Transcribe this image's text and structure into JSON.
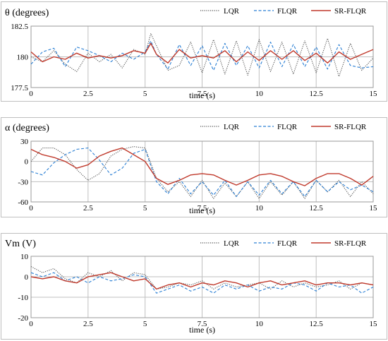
{
  "chart_data": [
    {
      "type": "line",
      "ylabel": "θ (degrees)",
      "xlabel": "time (s)",
      "xlim": [
        0,
        15
      ],
      "ylim": [
        177.5,
        182.5
      ],
      "xticks": [
        "0",
        "2.5",
        "5",
        "7.5",
        "10",
        "12.5",
        "15"
      ],
      "yticks": [
        "177.5",
        "180",
        "182.5"
      ],
      "grid": true,
      "legend": "top-right",
      "series": [
        {
          "name": "LQR",
          "color": "#555555",
          "style": "dotted",
          "x": [
            0,
            0.5,
            1,
            1.5,
            2,
            2.5,
            3,
            3.5,
            4,
            4.5,
            5,
            5.25,
            5.5,
            6,
            6.5,
            7,
            7.5,
            8,
            8.5,
            9,
            9.5,
            10,
            10.5,
            11,
            11.5,
            12,
            12.5,
            13,
            13.5,
            14,
            14.5,
            15
          ],
          "y": [
            180,
            179.6,
            180.5,
            179.4,
            178.8,
            180.3,
            179.6,
            180.2,
            179.1,
            180.6,
            180.2,
            181.9,
            180.9,
            178.9,
            179.3,
            181.2,
            178.7,
            181.4,
            178.6,
            181.3,
            178.5,
            181.4,
            178.8,
            181.2,
            178.6,
            181.3,
            178.7,
            181.5,
            178.4,
            181.1,
            178.9,
            179.9
          ]
        },
        {
          "name": "FLQR",
          "color": "#2a7fd4",
          "style": "dashed",
          "x": [
            0,
            0.5,
            1,
            1.5,
            2,
            2.5,
            3,
            3.5,
            4,
            4.5,
            5,
            5.25,
            5.5,
            6,
            6.5,
            7,
            7.5,
            8,
            8.5,
            9,
            9.5,
            10,
            10.5,
            11,
            11.5,
            12,
            12.5,
            13,
            13.5,
            14,
            14.5,
            15
          ],
          "y": [
            179.4,
            180.4,
            180.7,
            179.2,
            180.8,
            180.5,
            180.1,
            179.6,
            180.3,
            179.8,
            180.4,
            181.3,
            180.2,
            179,
            181,
            179.3,
            180.9,
            178.9,
            181.1,
            179.3,
            180.9,
            179.1,
            181.2,
            179.2,
            181,
            179.2,
            180.8,
            179,
            181,
            179.3,
            179.1,
            179.2
          ]
        },
        {
          "name": "SR-FLQR",
          "color": "#c0392b",
          "style": "solid",
          "x": [
            0,
            0.5,
            1,
            1.5,
            2,
            2.5,
            3,
            3.5,
            4,
            4.5,
            5,
            5.25,
            5.5,
            6,
            6.5,
            7,
            7.5,
            8,
            8.5,
            9,
            9.5,
            10,
            10.5,
            11,
            11.5,
            12,
            12.5,
            13,
            13.5,
            14,
            14.5,
            15
          ],
          "y": [
            180.4,
            179.6,
            180,
            179.8,
            180.3,
            179.9,
            180.1,
            179.9,
            180.1,
            180.5,
            180.3,
            181.1,
            180.2,
            179.5,
            180.6,
            179.9,
            180.1,
            179.9,
            180.5,
            179.6,
            180.4,
            179.7,
            180.5,
            179.8,
            180.5,
            179.7,
            180.3,
            179.5,
            180.4,
            179.8,
            180.2,
            180.6
          ]
        }
      ]
    },
    {
      "type": "line",
      "ylabel": "α (degrees)",
      "xlabel": "time (s)",
      "xlim": [
        0,
        15
      ],
      "ylim": [
        -60,
        30
      ],
      "xticks": [
        "0",
        "2.5",
        "5",
        "7.5",
        "10",
        "12.5",
        "15"
      ],
      "yticks": [
        "30",
        "0",
        "-30",
        "-60"
      ],
      "grid": true,
      "legend": "top-right",
      "series": [
        {
          "name": "LQR",
          "color": "#555555",
          "style": "dotted",
          "x": [
            0,
            0.5,
            1,
            1.5,
            2,
            2.5,
            3,
            3.5,
            4,
            4.5,
            5,
            5.5,
            6,
            6.5,
            7,
            7.5,
            8,
            8.5,
            9,
            9.5,
            10,
            10.5,
            11,
            11.5,
            12,
            12.5,
            13,
            13.5,
            14,
            14.5,
            15
          ],
          "y": [
            0,
            20,
            20,
            10,
            -12,
            -28,
            -18,
            8,
            18,
            22,
            20,
            -25,
            -45,
            -30,
            -52,
            -28,
            -55,
            -32,
            -52,
            -30,
            -55,
            -30,
            -50,
            -30,
            -55,
            -28,
            -45,
            -28,
            -52,
            -30,
            -48
          ]
        },
        {
          "name": "FLQR",
          "color": "#2a7fd4",
          "style": "dashed",
          "x": [
            0,
            0.5,
            1,
            1.5,
            2,
            2.5,
            3,
            3.5,
            4,
            4.5,
            5,
            5.5,
            6,
            6.5,
            7,
            7.5,
            8,
            8.5,
            9,
            9.5,
            10,
            10.5,
            11,
            11.5,
            12,
            12.5,
            13,
            13.5,
            14,
            14.5,
            15
          ],
          "y": [
            -15,
            -20,
            -2,
            10,
            18,
            20,
            2,
            -20,
            -10,
            12,
            18,
            -30,
            -48,
            -25,
            -48,
            -30,
            -50,
            -28,
            -52,
            -30,
            -50,
            -28,
            -48,
            -30,
            -52,
            -28,
            -45,
            -30,
            -42,
            -35,
            -45
          ]
        },
        {
          "name": "SR-FLQR",
          "color": "#c0392b",
          "style": "solid",
          "x": [
            0,
            0.5,
            1,
            1.5,
            2,
            2.5,
            3,
            3.5,
            4,
            4.5,
            5,
            5.5,
            6,
            6.5,
            7,
            7.5,
            8,
            8.5,
            9,
            9.5,
            10,
            10.5,
            11,
            11.5,
            12,
            12.5,
            13,
            13.5,
            14,
            14.5,
            15
          ],
          "y": [
            18,
            10,
            6,
            0,
            -10,
            -5,
            8,
            15,
            20,
            10,
            0,
            -25,
            -34,
            -28,
            -20,
            -18,
            -20,
            -28,
            -35,
            -28,
            -20,
            -18,
            -22,
            -30,
            -36,
            -25,
            -18,
            -18,
            -25,
            -35,
            -22
          ]
        }
      ]
    },
    {
      "type": "line",
      "ylabel": "Vm (V)",
      "xlabel": "time (s)",
      "xlim": [
        0,
        15
      ],
      "ylim": [
        -20,
        10
      ],
      "xticks": [
        "0",
        "2.5",
        "5",
        "7.5",
        "10",
        "12.5",
        "15"
      ],
      "yticks": [
        "10",
        "0",
        "-10",
        "-20"
      ],
      "grid": true,
      "legend": "top-right",
      "series": [
        {
          "name": "LQR",
          "color": "#555555",
          "style": "dotted",
          "x": [
            0,
            0.5,
            1,
            1.5,
            2,
            2.5,
            3,
            3.5,
            4,
            4.5,
            5,
            5.5,
            6,
            6.5,
            7,
            7.5,
            8,
            8.5,
            9,
            9.5,
            10,
            10.5,
            11,
            11.5,
            12,
            12.5,
            13,
            13.5,
            14,
            14.5,
            15
          ],
          "y": [
            5,
            2,
            4,
            -1,
            -3,
            2,
            0,
            3,
            -2,
            2,
            1,
            -6,
            -5,
            -3,
            -4,
            -2,
            -6,
            -3,
            -5,
            -4,
            -3,
            -6,
            -2,
            -5,
            -3,
            -5,
            -4,
            -2,
            -6,
            -3,
            -4
          ]
        },
        {
          "name": "FLQR",
          "color": "#2a7fd4",
          "style": "dashed",
          "x": [
            0,
            0.5,
            1,
            1.5,
            2,
            2.5,
            3,
            3.5,
            4,
            4.5,
            5,
            5.5,
            6,
            6.5,
            7,
            7.5,
            8,
            8.5,
            9,
            9.5,
            10,
            10.5,
            11,
            11.5,
            12,
            12.5,
            13,
            13.5,
            14,
            14.5,
            15
          ],
          "y": [
            2,
            0,
            2,
            -2,
            0,
            -3,
            0,
            -2,
            -1,
            1,
            0,
            -8,
            -6,
            -4,
            -7,
            -5,
            -8,
            -4,
            -6,
            -4,
            -7,
            -5,
            -6,
            -3,
            -4,
            -7,
            -3,
            -5,
            -4,
            -8,
            -5
          ]
        },
        {
          "name": "SR-FLQR",
          "color": "#c0392b",
          "style": "solid",
          "x": [
            0,
            0.5,
            1,
            1.5,
            2,
            2.5,
            3,
            3.5,
            4,
            4.5,
            5,
            5.5,
            6,
            6.5,
            7,
            7.5,
            8,
            8.5,
            9,
            9.5,
            10,
            10.5,
            11,
            11.5,
            12,
            12.5,
            13,
            13.5,
            14,
            14.5,
            15
          ],
          "y": [
            0,
            -1,
            0,
            -2,
            -3,
            0,
            1,
            2,
            0,
            -2,
            -1,
            -6,
            -4,
            -3,
            -5,
            -3,
            -4,
            -2,
            -3,
            -5,
            -3,
            -2,
            -4,
            -3,
            -2,
            -4,
            -3,
            -3,
            -4,
            -3,
            -4
          ]
        }
      ]
    }
  ]
}
